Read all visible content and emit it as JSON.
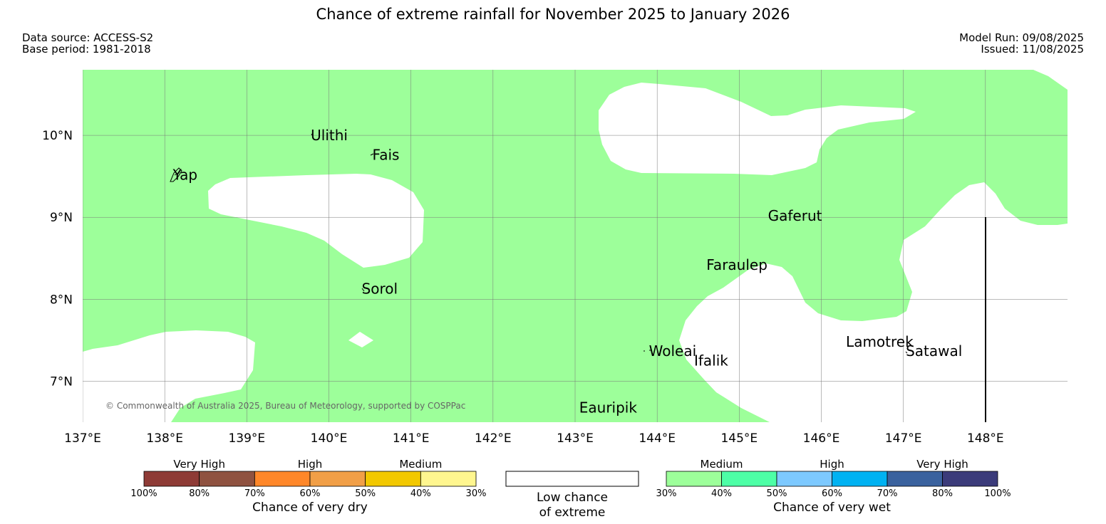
{
  "title": "Chance of extreme rainfall for November 2025 to January 2026",
  "meta": {
    "data_source": "Data source: ACCESS-S2",
    "base_period": "Base period: 1981-2018",
    "model_run": "Model Run: 09/08/2025",
    "issued": "Issued: 11/08/2025"
  },
  "map": {
    "lon_range": [
      137,
      149
    ],
    "lat_range": [
      6.5,
      10.8
    ],
    "x_ticks": [
      "137°E",
      "138°E",
      "139°E",
      "140°E",
      "141°E",
      "142°E",
      "143°E",
      "144°E",
      "145°E",
      "146°E",
      "147°E",
      "148°E"
    ],
    "y_ticks": [
      "10°N",
      "9°N",
      "8°N",
      "7°N"
    ],
    "colors": {
      "wet_medium": "#9dff9a",
      "low_chance": "#ffffff",
      "grid": "#777777"
    },
    "places": [
      {
        "name": "Yap",
        "lon": 138.1,
        "lat": 9.52
      },
      {
        "name": "Ulithi",
        "lon": 139.78,
        "lat": 10.0
      },
      {
        "name": "Fais",
        "lon": 140.53,
        "lat": 9.76
      },
      {
        "name": "Sorol",
        "lon": 140.4,
        "lat": 8.13
      },
      {
        "name": "Gaferut",
        "lon": 145.35,
        "lat": 9.02
      },
      {
        "name": "Faraulep",
        "lon": 144.6,
        "lat": 8.42
      },
      {
        "name": "Woleai",
        "lon": 143.9,
        "lat": 7.37
      },
      {
        "name": "Ifalik",
        "lon": 144.45,
        "lat": 7.25
      },
      {
        "name": "Lamotrek",
        "lon": 146.3,
        "lat": 7.48
      },
      {
        "name": "Satawal",
        "lon": 147.03,
        "lat": 7.37
      },
      {
        "name": "Eauripik",
        "lon": 143.05,
        "lat": 6.68
      }
    ],
    "copyright": "© Commonwealth of Australia 2025, Bureau of Meteorology, supported by COSPPac"
  },
  "legend": {
    "dry": {
      "categories": [
        "Very High",
        "High",
        "Medium"
      ],
      "colors": [
        "#8e3b36",
        "#8f5240",
        "#ff8729",
        "#f19f47",
        "#f2c800",
        "#fff68f"
      ],
      "ticks": [
        "100%",
        "80%",
        "70%",
        "60%",
        "50%",
        "40%",
        "30%"
      ],
      "title": "Chance of very dry"
    },
    "low": {
      "line1": "Low chance",
      "line2": "of extreme"
    },
    "wet": {
      "categories": [
        "Medium",
        "High",
        "Very High"
      ],
      "colors": [
        "#9dff9a",
        "#4dffa6",
        "#7dc9ff",
        "#00b2f2",
        "#3a629e",
        "#3b3b7a"
      ],
      "ticks": [
        "30%",
        "40%",
        "50%",
        "60%",
        "70%",
        "80%",
        "100%"
      ],
      "title": "Chance of very wet"
    }
  }
}
